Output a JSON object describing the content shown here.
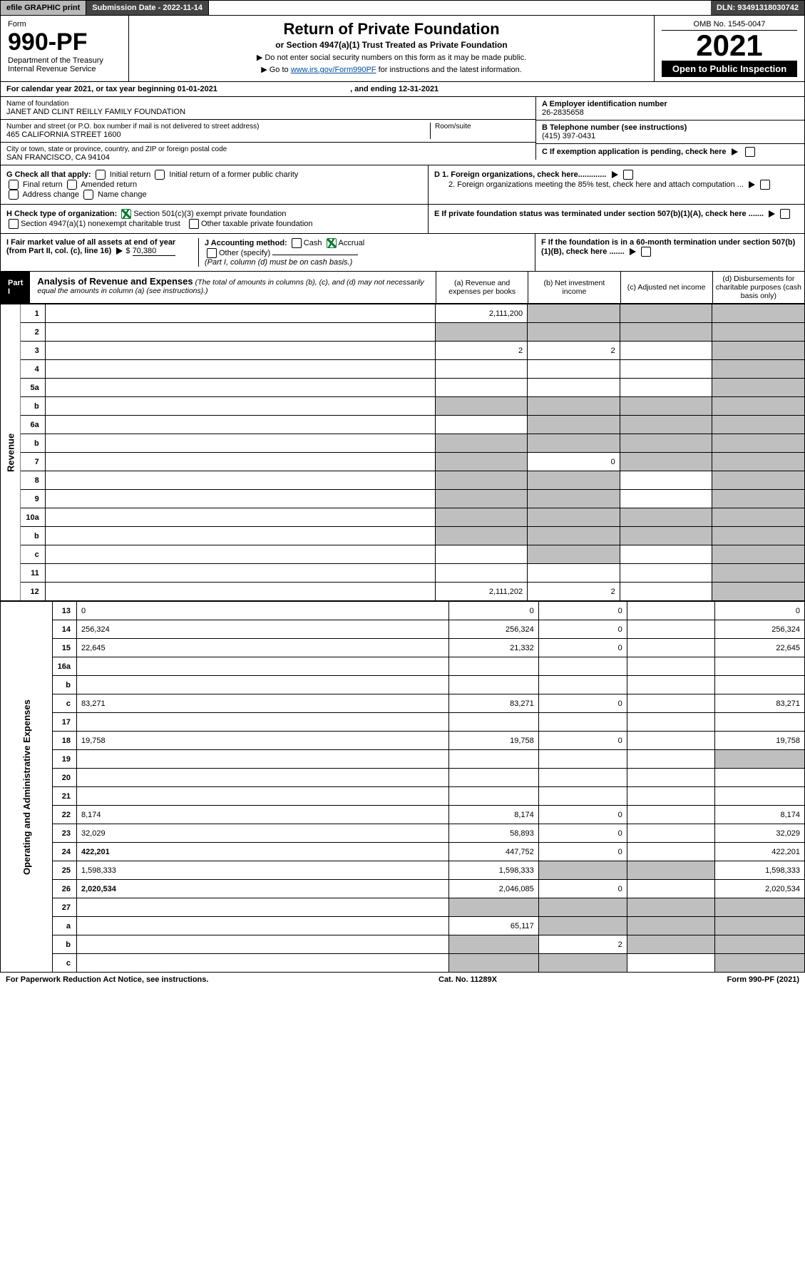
{
  "topbar": {
    "efile": "efile GRAPHIC print",
    "subdate_label": "Submission Date - ",
    "subdate": "2022-11-14",
    "dln_label": "DLN: ",
    "dln": "93491318030742"
  },
  "head": {
    "form_label": "Form",
    "form_no": "990-PF",
    "dept1": "Department of the Treasury",
    "dept2": "Internal Revenue Service",
    "title": "Return of Private Foundation",
    "subtitle": "or Section 4947(a)(1) Trust Treated as Private Foundation",
    "note1": "▶ Do not enter social security numbers on this form as it may be made public.",
    "note2_pre": "▶ Go to ",
    "note2_link": "www.irs.gov/Form990PF",
    "note2_post": " for instructions and the latest information.",
    "omb": "OMB No. 1545-0047",
    "year": "2021",
    "openpub": "Open to Public Inspection"
  },
  "cal": {
    "text_a": "For calendar year 2021, or tax year beginning ",
    "begin": "01-01-2021",
    "text_b": ", and ending ",
    "end": "12-31-2021"
  },
  "info": {
    "name_lbl": "Name of foundation",
    "name": "JANET AND CLINT REILLY FAMILY FOUNDATION",
    "addr_lbl": "Number and street (or P.O. box number if mail is not delivered to street address)",
    "addr": "465 CALIFORNIA STREET 1600",
    "room_lbl": "Room/suite",
    "city_lbl": "City or town, state or province, country, and ZIP or foreign postal code",
    "city": "SAN FRANCISCO, CA  94104",
    "ein_lbl": "A Employer identification number",
    "ein": "26-2835658",
    "tel_lbl": "B Telephone number (see instructions)",
    "tel": "(415) 397-0431",
    "c_lbl": "C If exemption application is pending, check here",
    "d1_lbl": "D 1. Foreign organizations, check here.............",
    "d2_lbl": "2. Foreign organizations meeting the 85% test, check here and attach computation ...",
    "e_lbl": "E If private foundation status was terminated under section 507(b)(1)(A), check here .......",
    "f_lbl": "F If the foundation is in a 60-month termination under section 507(b)(1)(B), check here ......."
  },
  "g": {
    "label": "G Check all that apply:",
    "opts": [
      "Initial return",
      "Initial return of a former public charity",
      "Final return",
      "Amended return",
      "Address change",
      "Name change"
    ]
  },
  "h": {
    "label": "H Check type of organization:",
    "opt1": "Section 501(c)(3) exempt private foundation",
    "opt2": "Section 4947(a)(1) nonexempt charitable trust",
    "opt3": "Other taxable private foundation"
  },
  "i": {
    "label": "I Fair market value of all assets at end of year (from Part II, col. (c), line 16)",
    "val": "70,380"
  },
  "j": {
    "label": "J Accounting method:",
    "cash": "Cash",
    "accrual": "Accrual",
    "other": "Other (specify)",
    "note": "(Part I, column (d) must be on cash basis.)"
  },
  "part1": {
    "label": "Part I",
    "title": "Analysis of Revenue and Expenses",
    "title_note": "(The total of amounts in columns (b), (c), and (d) may not necessarily equal the amounts in column (a) (see instructions).)",
    "cols": {
      "a": "(a) Revenue and expenses per books",
      "b": "(b) Net investment income",
      "c": "(c) Adjusted net income",
      "d": "(d) Disbursements for charitable purposes (cash basis only)"
    }
  },
  "sides": {
    "rev": "Revenue",
    "exp": "Operating and Administrative Expenses"
  },
  "rows": [
    {
      "n": "1",
      "d": "",
      "a": "2,111,200",
      "b": "",
      "c": "",
      "dgrey": true,
      "bgrey": true,
      "cgrey": true
    },
    {
      "n": "2",
      "d": "",
      "note": true,
      "a": "",
      "b": "",
      "c": "",
      "greyall": true
    },
    {
      "n": "3",
      "d": "",
      "a": "2",
      "b": "2",
      "c": "",
      "dgrey": true
    },
    {
      "n": "4",
      "d": "",
      "a": "",
      "b": "",
      "c": "",
      "dgrey": true
    },
    {
      "n": "5a",
      "d": "",
      "a": "",
      "b": "",
      "c": "",
      "dgrey": true
    },
    {
      "n": "b",
      "d": "",
      "a": "",
      "b": "",
      "c": "",
      "greyall": true
    },
    {
      "n": "6a",
      "d": "",
      "a": "",
      "b": "",
      "c": "",
      "bgrey": true,
      "cgrey": true,
      "dgrey": true
    },
    {
      "n": "b",
      "d": "",
      "a": "",
      "b": "",
      "c": "",
      "greyall": true
    },
    {
      "n": "7",
      "d": "",
      "a": "",
      "b": "0",
      "c": "",
      "agrey": true,
      "cgrey": true,
      "dgrey": true
    },
    {
      "n": "8",
      "d": "",
      "a": "",
      "b": "",
      "c": "",
      "agrey": true,
      "bgrey": true,
      "dgrey": true
    },
    {
      "n": "9",
      "d": "",
      "a": "",
      "b": "",
      "c": "",
      "agrey": true,
      "bgrey": true,
      "dgrey": true
    },
    {
      "n": "10a",
      "d": "",
      "a": "",
      "b": "",
      "c": "",
      "greyall": true
    },
    {
      "n": "b",
      "d": "",
      "a": "",
      "b": "",
      "c": "",
      "greyall": true
    },
    {
      "n": "c",
      "d": "",
      "a": "",
      "b": "",
      "c": "",
      "bgrey": true,
      "dgrey": true
    },
    {
      "n": "11",
      "d": "",
      "a": "",
      "b": "",
      "c": "",
      "dgrey": true
    },
    {
      "n": "12",
      "d": "",
      "a": "2,111,202",
      "b": "2",
      "c": "",
      "dgrey": true,
      "bold": true
    }
  ],
  "exprows": [
    {
      "n": "13",
      "d": "0",
      "a": "0",
      "b": "0",
      "c": ""
    },
    {
      "n": "14",
      "d": "256,324",
      "a": "256,324",
      "b": "0",
      "c": ""
    },
    {
      "n": "15",
      "d": "22,645",
      "a": "21,332",
      "b": "0",
      "c": ""
    },
    {
      "n": "16a",
      "d": "",
      "a": "",
      "b": "",
      "c": ""
    },
    {
      "n": "b",
      "d": "",
      "a": "",
      "b": "",
      "c": ""
    },
    {
      "n": "c",
      "d": "83,271",
      "a": "83,271",
      "b": "0",
      "c": ""
    },
    {
      "n": "17",
      "d": "",
      "a": "",
      "b": "",
      "c": ""
    },
    {
      "n": "18",
      "d": "19,758",
      "a": "19,758",
      "b": "0",
      "c": ""
    },
    {
      "n": "19",
      "d": "",
      "a": "",
      "b": "",
      "c": "",
      "dgrey": true
    },
    {
      "n": "20",
      "d": "",
      "a": "",
      "b": "",
      "c": ""
    },
    {
      "n": "21",
      "d": "",
      "a": "",
      "b": "",
      "c": ""
    },
    {
      "n": "22",
      "d": "8,174",
      "a": "8,174",
      "b": "0",
      "c": ""
    },
    {
      "n": "23",
      "d": "32,029",
      "a": "58,893",
      "b": "0",
      "c": ""
    },
    {
      "n": "24",
      "d": "422,201",
      "a": "447,752",
      "b": "0",
      "c": "",
      "bold": true
    },
    {
      "n": "25",
      "d": "1,598,333",
      "a": "1,598,333",
      "b": "",
      "c": "",
      "bgrey": true,
      "cgrey": true
    },
    {
      "n": "26",
      "d": "2,020,534",
      "a": "2,046,085",
      "b": "0",
      "c": "",
      "bold": true
    },
    {
      "n": "27",
      "d": "",
      "a": "",
      "b": "",
      "c": "",
      "greyall": true
    },
    {
      "n": "a",
      "d": "",
      "a": "65,117",
      "b": "",
      "c": "",
      "bgrey": true,
      "cgrey": true,
      "dgrey": true,
      "bold": true
    },
    {
      "n": "b",
      "d": "",
      "a": "",
      "b": "2",
      "c": "",
      "agrey": true,
      "cgrey": true,
      "dgrey": true,
      "bold": true
    },
    {
      "n": "c",
      "d": "",
      "a": "",
      "b": "",
      "c": "",
      "agrey": true,
      "bgrey": true,
      "dgrey": true,
      "bold": true
    }
  ],
  "footer": {
    "left": "For Paperwork Reduction Act Notice, see instructions.",
    "mid": "Cat. No. 11289X",
    "right": "Form 990-PF (2021)"
  }
}
